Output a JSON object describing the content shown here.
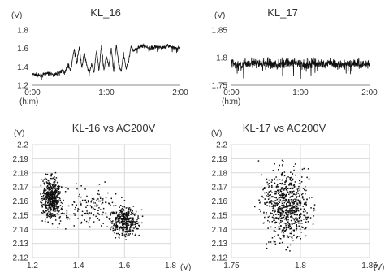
{
  "colors": {
    "line": "#111111",
    "point": "#111111",
    "axis": "#888888",
    "grid": "#d9d9d9",
    "text": "#333333"
  },
  "chart_data": [
    {
      "type": "line",
      "title": "KL_16",
      "unit_y": "(V)",
      "unit_x": "(h:m)",
      "grid": false,
      "ylim": [
        1.2,
        1.8
      ],
      "xlim": [
        0,
        120
      ],
      "y_ticks": [
        1.2,
        1.4,
        1.6,
        1.8
      ],
      "y_tick_labels": [
        "1.2",
        "1.4",
        "1.6",
        "1.8"
      ],
      "x_ticks": [
        0,
        60,
        120
      ],
      "x_tick_labels": [
        "0:00",
        "1:00",
        "2:00"
      ],
      "series": [
        {
          "x": [
            0,
            6,
            12,
            18,
            22,
            24,
            26,
            29,
            31,
            34,
            36,
            38,
            40,
            42,
            44,
            46,
            48,
            50,
            52,
            54,
            56,
            58,
            60,
            62,
            64,
            66,
            68,
            70,
            72,
            74,
            76,
            78,
            80,
            82,
            86,
            90,
            95,
            100,
            105,
            110,
            115,
            120
          ],
          "y": [
            1.32,
            1.3,
            1.33,
            1.31,
            1.34,
            1.36,
            1.34,
            1.42,
            1.36,
            1.6,
            1.44,
            1.62,
            1.38,
            1.55,
            1.43,
            1.32,
            1.44,
            1.34,
            1.58,
            1.36,
            1.63,
            1.36,
            1.52,
            1.4,
            1.6,
            1.36,
            1.65,
            1.42,
            1.35,
            1.55,
            1.38,
            1.45,
            1.62,
            1.58,
            1.61,
            1.63,
            1.6,
            1.62,
            1.61,
            1.63,
            1.6,
            1.61
          ]
        }
      ]
    },
    {
      "type": "line",
      "title": "KL_17",
      "unit_y": "(V)",
      "unit_x": "(h:m)",
      "grid": false,
      "ylim": [
        1.75,
        1.85
      ],
      "xlim": [
        0,
        120
      ],
      "y_ticks": [
        1.75,
        1.8,
        1.85
      ],
      "y_tick_labels": [
        "1.75",
        "1.8",
        "1.85"
      ],
      "x_ticks": [
        0,
        60,
        120
      ],
      "x_tick_labels": [
        "0:00",
        "1:00",
        "2:00"
      ],
      "series": [
        {
          "x": [
            0,
            8,
            16,
            24,
            32,
            40,
            48,
            56,
            64,
            72,
            80,
            88,
            96,
            104,
            112,
            120
          ],
          "y": [
            1.79,
            1.785,
            1.792,
            1.788,
            1.79,
            1.786,
            1.791,
            1.789,
            1.787,
            1.792,
            1.788,
            1.79,
            1.786,
            1.791,
            1.788,
            1.789
          ]
        }
      ]
    },
    {
      "type": "scatter",
      "title": "KL-16 vs AC200V",
      "unit_y": "(V)",
      "unit_x": "(V)",
      "grid": true,
      "xlim": [
        1.2,
        1.8
      ],
      "ylim": [
        2.12,
        2.2
      ],
      "x_ticks": [
        1.2,
        1.4,
        1.6,
        1.8
      ],
      "x_tick_labels": [
        "1.2",
        "1.4",
        "1.6",
        "1.8"
      ],
      "y_ticks": [
        2.12,
        2.13,
        2.14,
        2.15,
        2.16,
        2.17,
        2.18,
        2.19,
        2.2
      ],
      "y_tick_labels": [
        "2.12",
        "2.13",
        "2.14",
        "2.15",
        "2.16",
        "2.17",
        "2.18",
        "2.19",
        "2.2"
      ],
      "clusters": [
        {
          "x_center": 1.28,
          "y_center": 2.163,
          "x_spread": 0.02,
          "y_spread": 0.007,
          "points": 500
        },
        {
          "x_center": 1.6,
          "y_center": 2.146,
          "x_spread": 0.03,
          "y_spread": 0.005,
          "points": 350
        },
        {
          "x_center": 1.45,
          "y_center": 2.155,
          "x_spread": 0.07,
          "y_spread": 0.007,
          "points": 160
        }
      ]
    },
    {
      "type": "scatter",
      "title": "KL-17 vs AC200V",
      "unit_y": "(V)",
      "unit_x": "(V)",
      "grid": true,
      "xlim": [
        1.75,
        1.85
      ],
      "ylim": [
        2.12,
        2.2
      ],
      "x_ticks": [
        1.75,
        1.8,
        1.85
      ],
      "x_tick_labels": [
        "1.75",
        "1.8",
        "1.85"
      ],
      "y_ticks": [
        2.12,
        2.13,
        2.14,
        2.15,
        2.16,
        2.17,
        2.18,
        2.19,
        2.2
      ],
      "y_tick_labels": [
        "2.12",
        "2.13",
        "2.14",
        "2.15",
        "2.16",
        "2.17",
        "2.18",
        "2.19",
        "2.2"
      ],
      "clusters": [
        {
          "x_center": 1.79,
          "y_center": 2.157,
          "x_spread": 0.008,
          "y_spread": 0.012,
          "points": 700
        }
      ]
    }
  ]
}
